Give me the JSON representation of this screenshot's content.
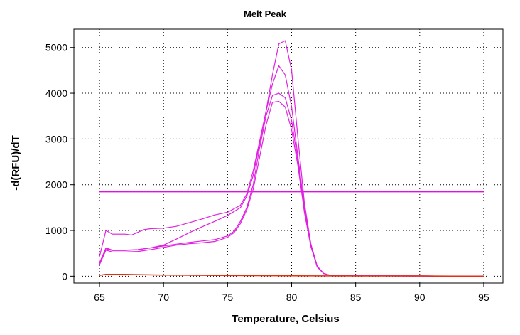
{
  "chart_data": {
    "type": "line",
    "title": "Melt Peak",
    "xlabel": "Temperature, Celsius",
    "ylabel": "-d(RFU)/dT",
    "xlim": [
      63,
      96.5
    ],
    "ylim": [
      -150,
      5400
    ],
    "xticks": [
      65,
      70,
      75,
      80,
      85,
      90,
      95
    ],
    "yticks": [
      0,
      1000,
      2000,
      3000,
      4000,
      5000
    ],
    "grid": true,
    "grid_style": "dotted",
    "colors": {
      "curves": "#e020e0",
      "threshold": "#e010e0",
      "background_curve": "#e03010"
    },
    "threshold": {
      "y": 1850,
      "x_start": 65,
      "x_end": 95
    },
    "series": [
      {
        "x": [
          65,
          65.5,
          66,
          67,
          67.5,
          68,
          68.5,
          69,
          70,
          71,
          72,
          73,
          74,
          75,
          76,
          76.5,
          77,
          77.5,
          78,
          78.5,
          79,
          79.5,
          80,
          80.5,
          81,
          81.5,
          82,
          82.5,
          83,
          84,
          85,
          90,
          95
        ],
        "y": [
          430,
          1000,
          920,
          920,
          900,
          960,
          1020,
          1040,
          1050,
          1090,
          1170,
          1250,
          1340,
          1400,
          1550,
          1800,
          2300,
          2950,
          3600,
          4400,
          5080,
          5150,
          4500,
          3000,
          1600,
          700,
          200,
          60,
          20,
          15,
          10,
          5,
          0
        ]
      },
      {
        "x": [
          65,
          65.5,
          66,
          67,
          68,
          69,
          70,
          71,
          72,
          73,
          74,
          75,
          76,
          76.5,
          77,
          77.5,
          78,
          78.5,
          79,
          79.5,
          80,
          80.5,
          81,
          81.5,
          82,
          82.5,
          83,
          84,
          85,
          90,
          95
        ],
        "y": [
          280,
          620,
          570,
          570,
          580,
          620,
          680,
          810,
          950,
          1080,
          1200,
          1330,
          1500,
          1750,
          2200,
          2900,
          3600,
          4200,
          4600,
          4400,
          3700,
          2600,
          1500,
          700,
          220,
          60,
          20,
          15,
          10,
          5,
          0
        ]
      },
      {
        "x": [
          65,
          65.5,
          66,
          67,
          68,
          69,
          70,
          71,
          72,
          73,
          74,
          75,
          75.5,
          76,
          76.5,
          77,
          77.5,
          78,
          78.5,
          79,
          79.5,
          80,
          80.5,
          81,
          81.5,
          82,
          82.5,
          83,
          84,
          85,
          90,
          95
        ],
        "y": [
          300,
          600,
          560,
          560,
          580,
          620,
          660,
          700,
          740,
          770,
          800,
          880,
          980,
          1200,
          1500,
          2000,
          2800,
          3500,
          3950,
          4000,
          3900,
          3400,
          2500,
          1400,
          650,
          200,
          60,
          20,
          15,
          10,
          5,
          0
        ]
      },
      {
        "x": [
          65,
          65.5,
          66,
          67,
          68,
          69,
          70,
          71,
          72,
          73,
          74,
          75,
          75.5,
          76,
          76.5,
          77,
          77.5,
          78,
          78.5,
          79,
          79.5,
          80,
          80.5,
          81,
          81.5,
          82,
          82.5,
          83,
          84,
          85,
          90,
          95
        ],
        "y": [
          250,
          570,
          530,
          530,
          540,
          580,
          630,
          680,
          710,
          730,
          760,
          850,
          950,
          1150,
          1450,
          1900,
          2600,
          3300,
          3800,
          3820,
          3700,
          3200,
          2400,
          1400,
          650,
          200,
          60,
          20,
          15,
          10,
          5,
          0
        ]
      },
      {
        "x": [
          65,
          65.5,
          66,
          67,
          68,
          70,
          75,
          80,
          85,
          90,
          95
        ],
        "y": [
          20,
          40,
          40,
          40,
          35,
          25,
          15,
          10,
          5,
          5,
          0
        ]
      }
    ]
  }
}
